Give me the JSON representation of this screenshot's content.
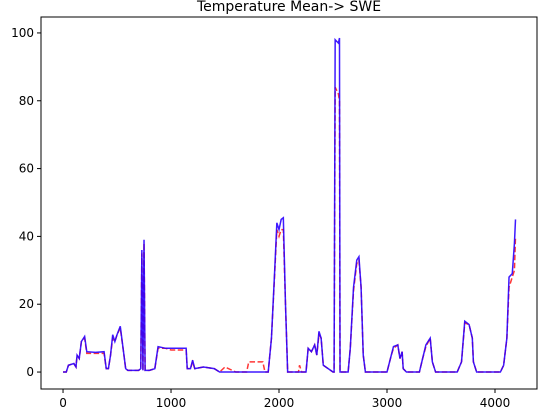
{
  "chart_data": {
    "type": "line",
    "title": "Temperature Mean-> SWE",
    "x": [
      0,
      30,
      50,
      100,
      120,
      130,
      150,
      170,
      200,
      220,
      300,
      380,
      400,
      420,
      440,
      460,
      480,
      500,
      530,
      560,
      580,
      600,
      700,
      720,
      730,
      740,
      750,
      760,
      800,
      850,
      880,
      950,
      1000,
      1100,
      1140,
      1150,
      1180,
      1200,
      1220,
      1300,
      1400,
      1450,
      1500,
      1600,
      1700,
      1720,
      1850,
      1870,
      1900,
      1930,
      1960,
      1980,
      2000,
      2020,
      2040,
      2060,
      2080,
      2180,
      2190,
      2210,
      2250,
      2270,
      2300,
      2330,
      2350,
      2370,
      2390,
      2410,
      2500,
      2510,
      2520,
      2550,
      2560,
      2565,
      2640,
      2660,
      2690,
      2720,
      2740,
      2760,
      2780,
      2800,
      3000,
      3040,
      3060,
      3100,
      3120,
      3140,
      3150,
      3180,
      3300,
      3330,
      3360,
      3400,
      3420,
      3450,
      3650,
      3690,
      3720,
      3760,
      3790,
      3800,
      3830,
      4050,
      4080,
      4110,
      4130,
      4160,
      4180,
      4190
    ],
    "series": [
      {
        "color": "#ff2020",
        "linestyle": "dashed",
        "values": [
          0,
          0,
          2,
          2.5,
          1.5,
          5,
          4,
          9,
          10,
          5.5,
          5.5,
          5.5,
          1,
          1,
          5,
          10,
          9,
          11,
          13,
          6,
          1,
          0.5,
          0.5,
          1,
          35,
          0.5,
          38,
          0.5,
          0.5,
          1,
          7,
          7,
          6.5,
          6.5,
          6.5,
          1,
          1,
          3,
          1,
          1.5,
          1,
          0,
          1.5,
          0,
          0,
          3,
          3,
          0,
          0,
          10,
          29,
          42,
          40,
          42,
          42,
          20,
          0,
          0,
          2,
          0,
          0,
          7,
          6,
          8,
          5,
          11,
          10,
          2,
          0,
          0,
          84,
          82,
          80,
          0,
          0,
          7,
          24,
          32,
          33,
          25,
          5,
          0,
          0,
          5,
          7,
          8,
          4,
          6,
          1,
          0,
          0,
          4,
          7.5,
          10,
          3,
          0,
          0,
          3,
          14.5,
          14,
          10,
          3,
          0,
          0,
          2,
          10,
          25,
          28,
          30,
          40
        ]
      },
      {
        "color": "#2a00ff",
        "linestyle": "solid",
        "values": [
          0,
          0,
          2,
          2.5,
          1.5,
          5,
          4,
          9,
          10.5,
          6,
          5.8,
          6,
          1,
          1,
          5,
          11,
          9,
          11,
          13.5,
          6,
          1,
          0.5,
          0.5,
          1,
          36,
          0.5,
          39,
          0.5,
          0.5,
          1,
          7.5,
          7,
          7,
          7,
          7,
          1,
          1,
          3.5,
          1,
          1.5,
          1,
          0,
          0,
          0,
          0,
          0,
          0,
          0,
          0,
          10,
          30,
          44,
          42,
          45,
          45.5,
          20,
          0,
          0,
          0,
          0,
          0,
          7,
          6,
          8,
          5,
          12,
          10,
          2,
          0,
          0,
          98,
          97,
          98.5,
          0,
          0,
          7,
          25,
          33,
          34,
          25,
          5,
          0,
          0,
          5,
          7.5,
          8,
          4,
          6,
          1,
          0,
          0,
          4,
          8,
          10,
          3,
          0,
          0,
          3,
          15,
          14,
          10,
          3,
          0,
          0,
          2,
          10,
          28,
          29,
          38,
          45
        ]
      }
    ],
    "xlim": [
      -204,
      4389
    ],
    "ylim": [
      -5,
      104.7
    ],
    "xticks": [
      0,
      1000,
      2000,
      3000,
      4000
    ],
    "yticks": [
      0,
      20,
      40,
      60,
      80,
      100
    ]
  }
}
